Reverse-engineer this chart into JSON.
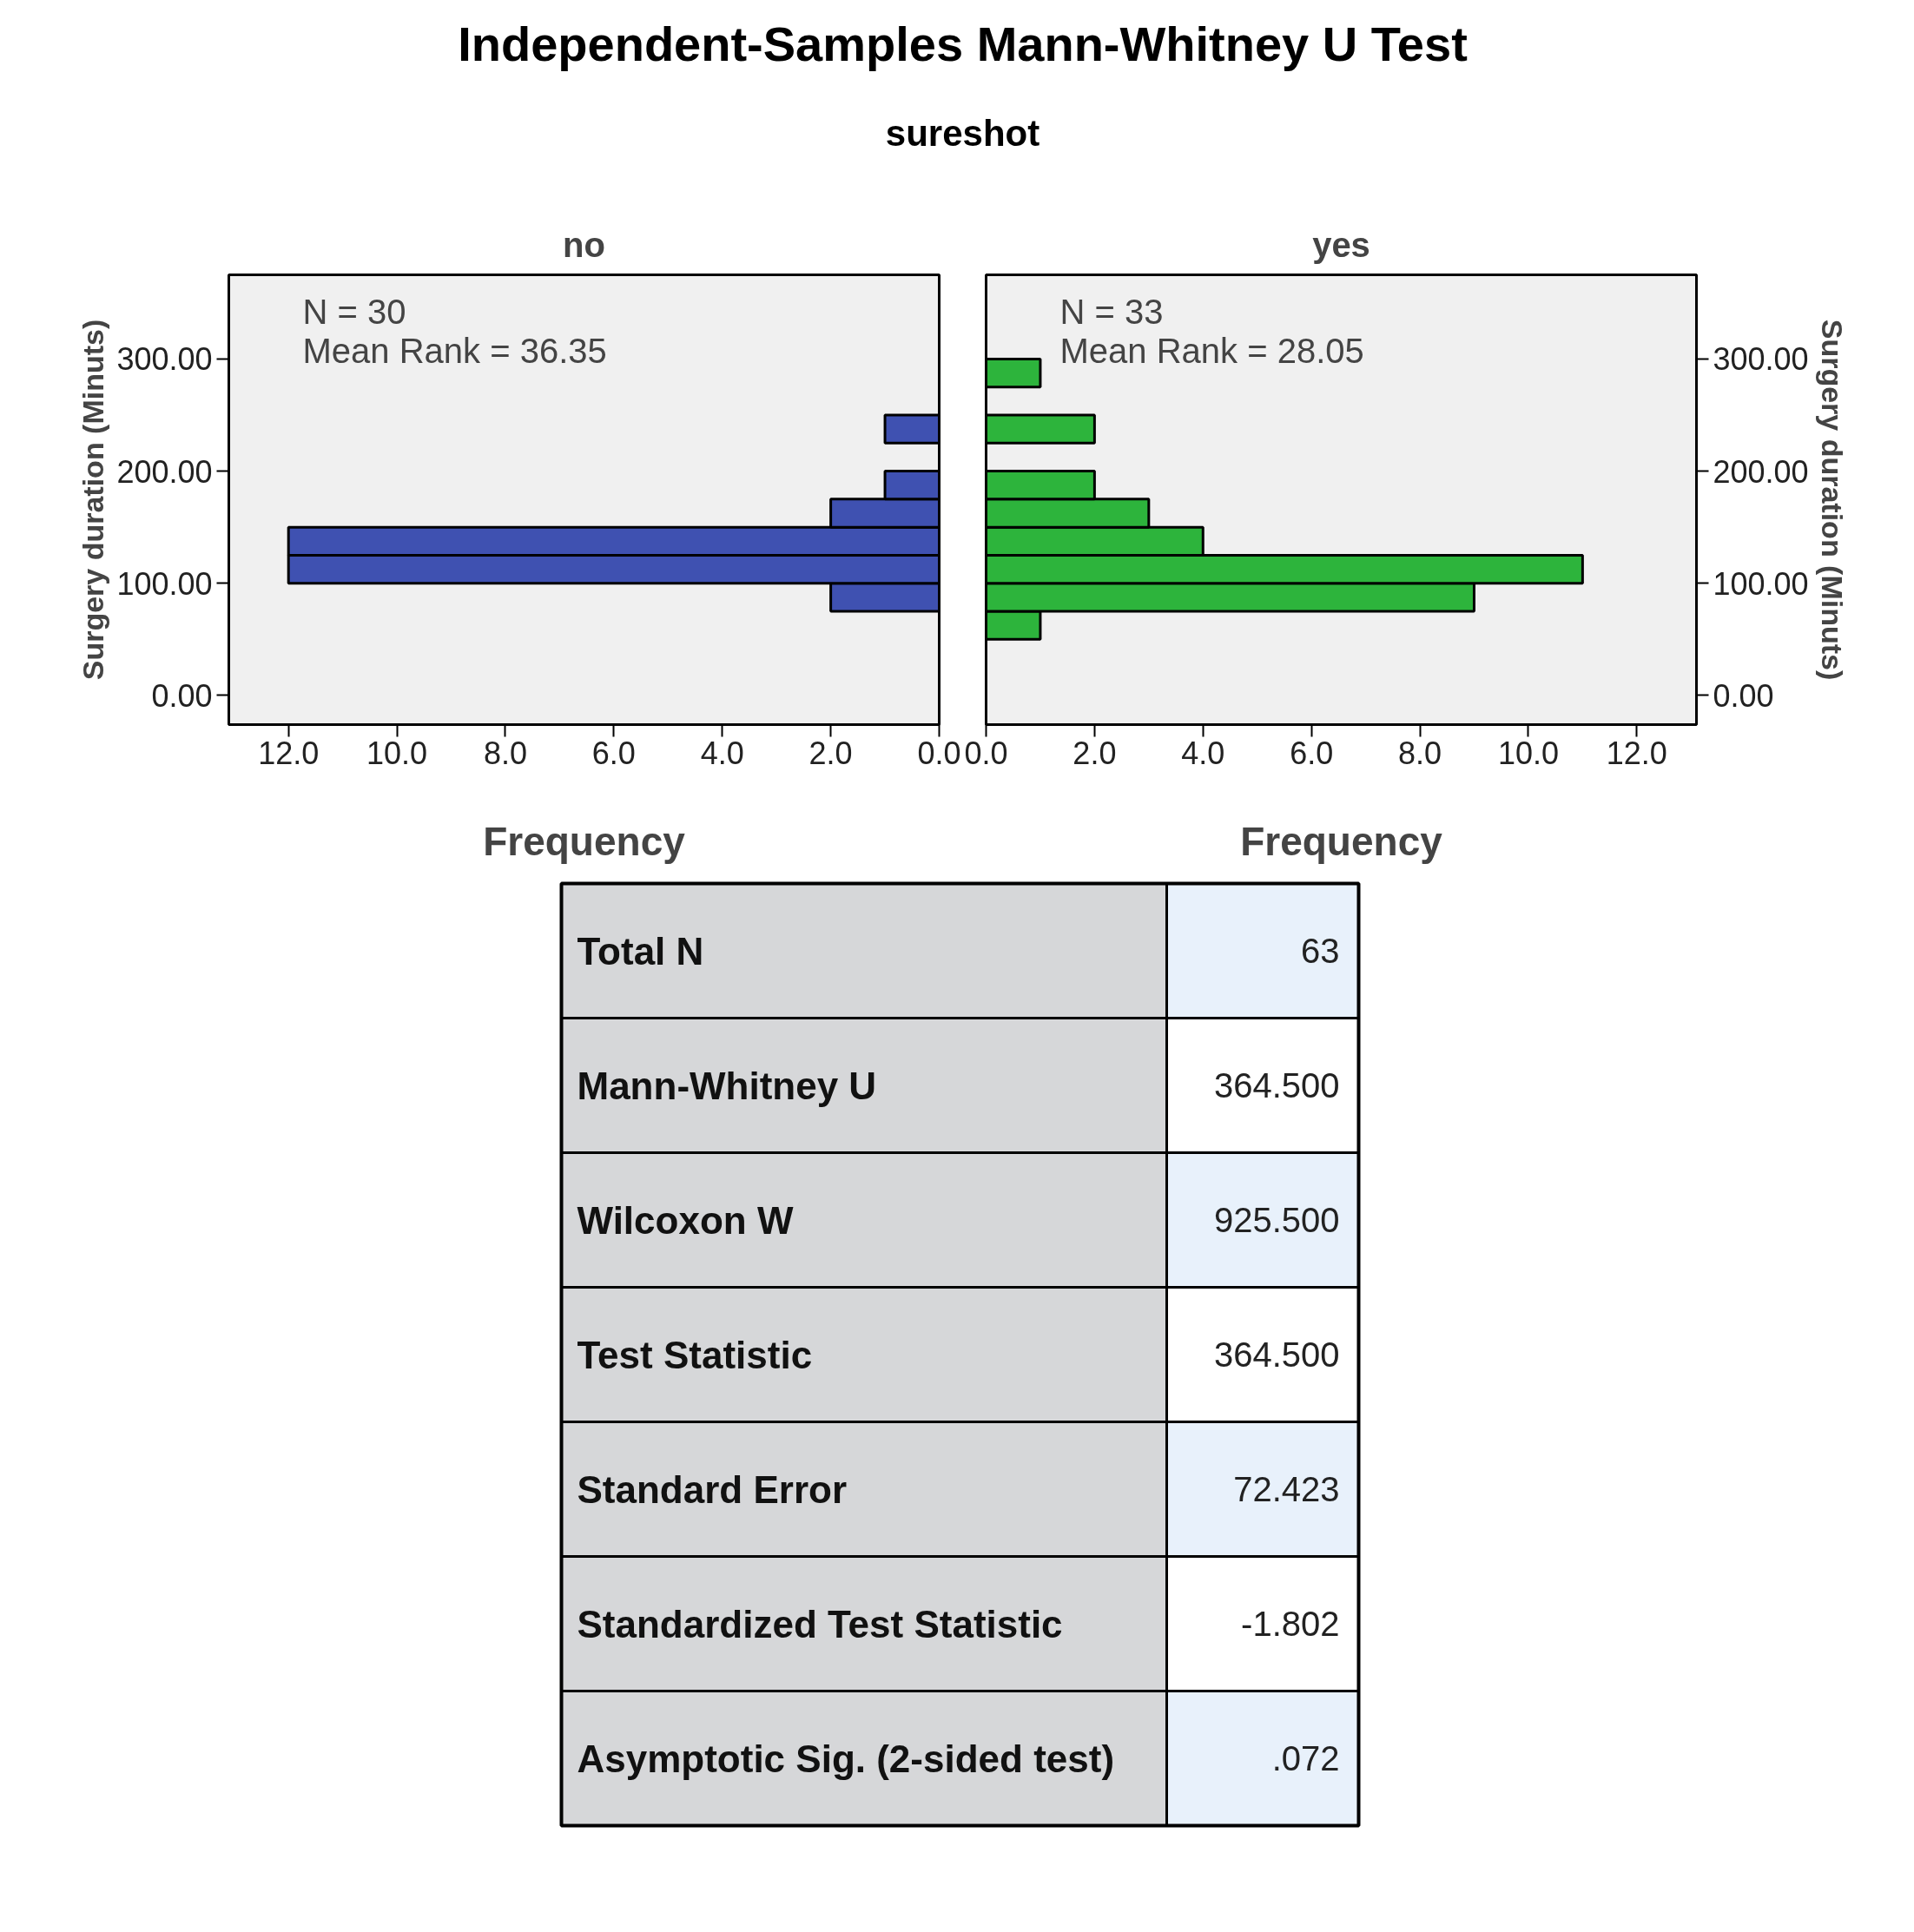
{
  "chart_data": [
    {
      "type": "other",
      "title": "Independent-Samples Mann-Whitney U Test",
      "subtitle": "sureshot"
    },
    {
      "type": "histogram",
      "orientation": "horizontal",
      "title": "no",
      "xlabel": "Frequency",
      "ylabel": "Surgery duration (Minuts)",
      "bins": [
        50,
        75,
        100,
        125,
        150,
        175,
        200,
        225,
        250,
        275,
        300
      ],
      "values": [
        0,
        2,
        12,
        12,
        2,
        1,
        0,
        1,
        0,
        0
      ],
      "color": "#3f51b1",
      "xlim": [
        13.1,
        0
      ],
      "xticks": [
        {
          "value": 12,
          "label": "12.0"
        },
        {
          "value": 10,
          "label": "10.0"
        },
        {
          "value": 8,
          "label": "8.0"
        },
        {
          "value": 6,
          "label": "6.0"
        },
        {
          "value": 4,
          "label": "4.0"
        },
        {
          "value": 2,
          "label": "2.0"
        },
        {
          "value": 0,
          "label": "0.0"
        }
      ],
      "ylim": [
        -26,
        375
      ],
      "yticks": [
        {
          "value": 0,
          "label": "0.00"
        },
        {
          "value": 100,
          "label": "100.00"
        },
        {
          "value": 200,
          "label": "200.00"
        },
        {
          "value": 300,
          "label": "300.00"
        }
      ],
      "annotations": [
        "N = 30",
        "Mean Rank = 36.35"
      ]
    },
    {
      "type": "histogram",
      "orientation": "horizontal",
      "title": "yes",
      "xlabel": "Frequency",
      "ylabel": "Surgery duration (Minuts)",
      "bins": [
        50,
        75,
        100,
        125,
        150,
        175,
        200,
        225,
        250,
        275,
        300
      ],
      "values": [
        1,
        9,
        11,
        4,
        3,
        2,
        0,
        2,
        0,
        1
      ],
      "color": "#2db43c",
      "xlim": [
        0,
        13.1
      ],
      "xticks": [
        {
          "value": 0,
          "label": "0.0"
        },
        {
          "value": 2,
          "label": "2.0"
        },
        {
          "value": 4,
          "label": "4.0"
        },
        {
          "value": 6,
          "label": "6.0"
        },
        {
          "value": 8,
          "label": "8.0"
        },
        {
          "value": 10,
          "label": "10.0"
        },
        {
          "value": 12,
          "label": "12.0"
        }
      ],
      "ylim": [
        -26,
        375
      ],
      "yticks": [
        {
          "value": 0,
          "label": "0.00"
        },
        {
          "value": 100,
          "label": "100.00"
        },
        {
          "value": 200,
          "label": "200.00"
        },
        {
          "value": 300,
          "label": "300.00"
        }
      ],
      "annotations": [
        "N = 33",
        "Mean Rank = 28.05"
      ]
    },
    {
      "type": "other",
      "categories": [
        "Total N",
        "Mann-Whitney U",
        "Wilcoxon W",
        "Test Statistic",
        "Standard Error",
        "Standardized Test Statistic",
        "Asymptotic Sig. (2-sided test)"
      ],
      "value_labels": [
        "63",
        "364.500",
        "925.500",
        "364.500",
        "72.423",
        "-1.802",
        ".072"
      ]
    }
  ]
}
